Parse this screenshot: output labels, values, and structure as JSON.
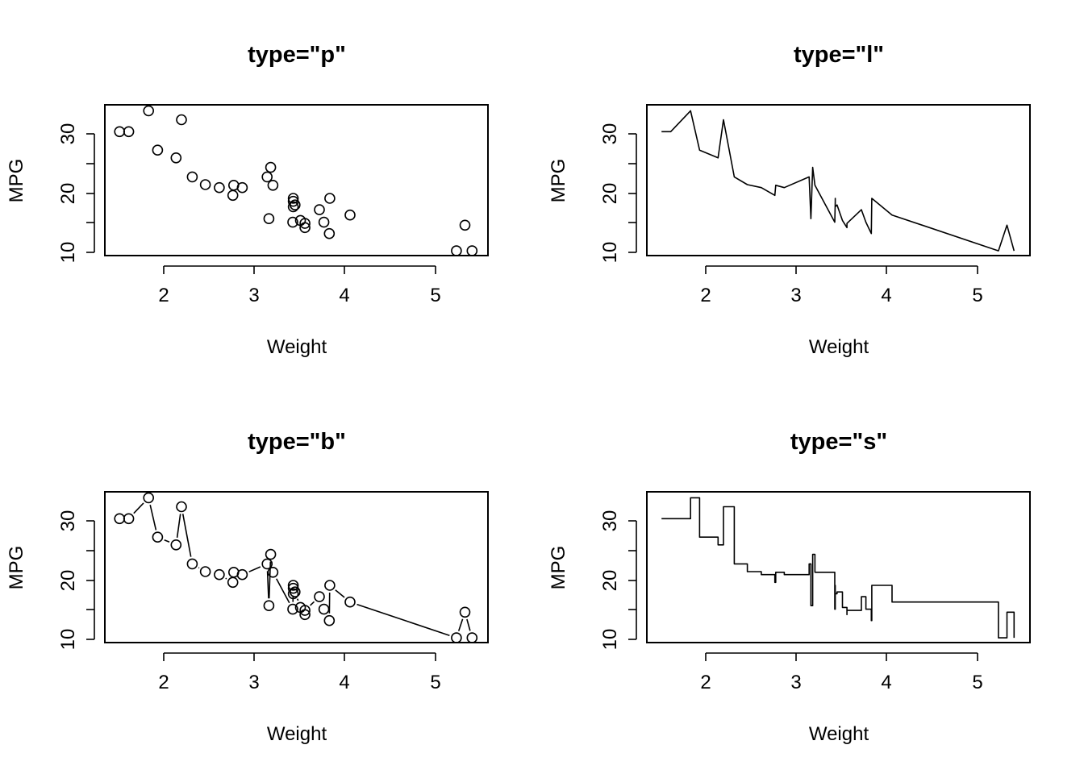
{
  "chart_data": [
    {
      "type": "scatter",
      "title": "type=\"p\"",
      "xlabel": "Weight",
      "ylabel": "MPG",
      "xticks": [
        "2",
        "3",
        "4",
        "5"
      ],
      "yticks": [
        "10",
        "20",
        "30"
      ],
      "xlim": [
        1.35,
        5.6
      ],
      "ylim": [
        9.6,
        34.9
      ],
      "x": [
        2.62,
        2.875,
        2.32,
        3.215,
        3.44,
        3.46,
        3.57,
        3.19,
        3.15,
        3.44,
        3.44,
        4.07,
        3.73,
        3.78,
        5.25,
        5.424,
        5.345,
        2.2,
        1.615,
        1.835,
        2.465,
        3.52,
        3.435,
        3.84,
        3.845,
        1.935,
        2.14,
        1.513,
        3.17,
        2.77,
        3.57,
        2.78
      ],
      "y": [
        21.0,
        21.0,
        22.8,
        21.4,
        18.7,
        18.1,
        14.3,
        24.4,
        22.8,
        19.2,
        17.8,
        16.4,
        17.3,
        15.2,
        10.4,
        10.4,
        14.7,
        32.4,
        30.4,
        33.9,
        21.5,
        15.5,
        15.2,
        13.3,
        19.2,
        27.3,
        26.0,
        30.4,
        15.8,
        19.7,
        15.0,
        21.4
      ]
    },
    {
      "type": "line",
      "title": "type=\"l\"",
      "xlabel": "Weight",
      "ylabel": "MPG",
      "xticks": [
        "2",
        "3",
        "4",
        "5"
      ],
      "yticks": [
        "10",
        "20",
        "30"
      ],
      "xlim": [
        1.35,
        5.6
      ],
      "ylim": [
        9.6,
        34.9
      ],
      "x": [
        1.513,
        1.615,
        1.835,
        1.935,
        2.14,
        2.2,
        2.32,
        2.465,
        2.62,
        2.77,
        2.78,
        2.875,
        3.15,
        3.17,
        3.19,
        3.215,
        3.435,
        3.44,
        3.44,
        3.44,
        3.46,
        3.52,
        3.57,
        3.57,
        3.73,
        3.78,
        3.84,
        3.845,
        4.07,
        5.25,
        5.345,
        5.424
      ],
      "y": [
        30.4,
        30.4,
        33.9,
        27.3,
        26.0,
        32.4,
        22.8,
        21.5,
        21.0,
        19.7,
        21.4,
        21.0,
        22.8,
        15.8,
        24.4,
        21.4,
        15.2,
        18.7,
        19.2,
        17.8,
        18.1,
        15.5,
        14.3,
        15.0,
        17.3,
        15.2,
        13.3,
        19.2,
        16.4,
        10.4,
        14.7,
        10.4
      ]
    },
    {
      "type": "line",
      "title": "type=\"b\"",
      "xlabel": "Weight",
      "ylabel": "MPG",
      "xticks": [
        "2",
        "3",
        "4",
        "5"
      ],
      "yticks": [
        "10",
        "20",
        "30"
      ],
      "xlim": [
        1.35,
        5.6
      ],
      "ylim": [
        9.6,
        34.9
      ],
      "x": [
        1.513,
        1.615,
        1.835,
        1.935,
        2.14,
        2.2,
        2.32,
        2.465,
        2.62,
        2.77,
        2.78,
        2.875,
        3.15,
        3.17,
        3.19,
        3.215,
        3.435,
        3.44,
        3.44,
        3.44,
        3.46,
        3.52,
        3.57,
        3.57,
        3.73,
        3.78,
        3.84,
        3.845,
        4.07,
        5.25,
        5.345,
        5.424
      ],
      "y": [
        30.4,
        30.4,
        33.9,
        27.3,
        26.0,
        32.4,
        22.8,
        21.5,
        21.0,
        19.7,
        21.4,
        21.0,
        22.8,
        15.8,
        24.4,
        21.4,
        15.2,
        18.7,
        19.2,
        17.8,
        18.1,
        15.5,
        14.3,
        15.0,
        17.3,
        15.2,
        13.3,
        19.2,
        16.4,
        10.4,
        14.7,
        10.4
      ]
    },
    {
      "type": "line",
      "title": "type=\"s\"",
      "xlabel": "Weight",
      "ylabel": "MPG",
      "xticks": [
        "2",
        "3",
        "4",
        "5"
      ],
      "yticks": [
        "10",
        "20",
        "30"
      ],
      "xlim": [
        1.35,
        5.6
      ],
      "ylim": [
        9.6,
        34.9
      ],
      "x": [
        1.513,
        1.615,
        1.835,
        1.935,
        2.14,
        2.2,
        2.32,
        2.465,
        2.62,
        2.77,
        2.78,
        2.875,
        3.15,
        3.17,
        3.19,
        3.215,
        3.435,
        3.44,
        3.44,
        3.44,
        3.46,
        3.52,
        3.57,
        3.57,
        3.73,
        3.78,
        3.84,
        3.845,
        4.07,
        5.25,
        5.345,
        5.424
      ],
      "y": [
        30.4,
        30.4,
        33.9,
        27.3,
        26.0,
        32.4,
        22.8,
        21.5,
        21.0,
        19.7,
        21.4,
        21.0,
        22.8,
        15.8,
        24.4,
        21.4,
        15.2,
        18.7,
        19.2,
        17.8,
        18.1,
        15.5,
        14.3,
        15.0,
        17.3,
        15.2,
        13.3,
        19.2,
        16.4,
        10.4,
        14.7,
        10.4
      ]
    }
  ]
}
